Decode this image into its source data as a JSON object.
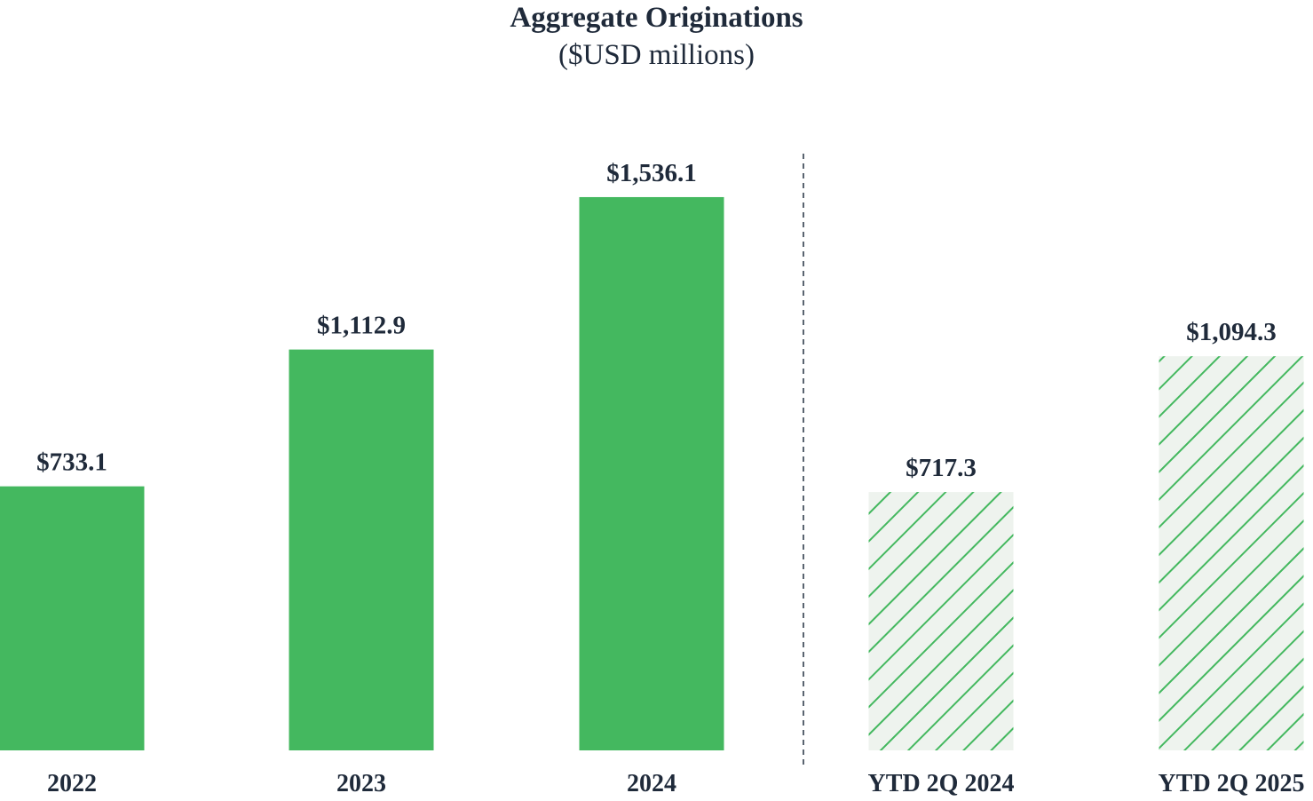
{
  "chart_data": {
    "type": "bar",
    "title": "Aggregate Originations",
    "subtitle": "($USD millions)",
    "categories": [
      "2022",
      "2023",
      "2024",
      "YTD 2Q 2024",
      "YTD 2Q 2025"
    ],
    "values": [
      733.1,
      1112.9,
      1536.1,
      717.3,
      1094.3
    ],
    "value_labels": [
      "$733.1",
      "$1,112.9",
      "$1,536.1",
      "$717.3",
      "$1,094.3"
    ],
    "bar_styles": [
      "solid",
      "solid",
      "solid",
      "hatched",
      "hatched"
    ],
    "divider": "dashed vertical line between 2024 and YTD 2Q 2024",
    "xlabel": "",
    "ylabel": "",
    "grid": false,
    "legend": "none",
    "colors": {
      "bar_fill": "#44b85f",
      "hatch_line": "#44b85f",
      "hatch_background": "#eef3ee",
      "text": "#1f2a3a",
      "divider": "#5a6470"
    }
  }
}
